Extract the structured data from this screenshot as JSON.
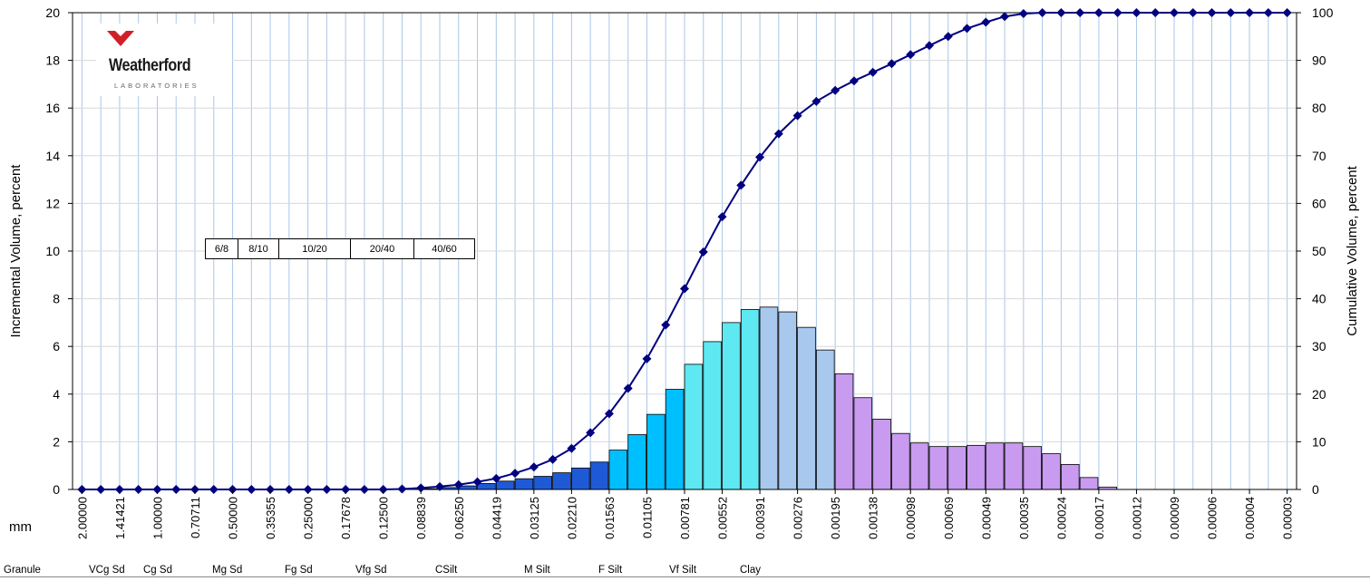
{
  "logo": {
    "wordmark": "Weatherford",
    "subtitle": "LABORATORIES"
  },
  "mesh_labels": [
    "6/8",
    "8/10",
    "10/20",
    "20/40",
    "40/60"
  ],
  "unit_label": "mm",
  "classes": [
    {
      "label": "Granule"
    },
    {
      "label": "VCg Sd"
    },
    {
      "label": "Cg Sd"
    },
    {
      "label": "Mg Sd"
    },
    {
      "label": "Fg Sd"
    },
    {
      "label": "Vfg Sd"
    },
    {
      "label": "CSilt"
    },
    {
      "label": "M Silt"
    },
    {
      "label": "F Silt"
    },
    {
      "label": "Vf Silt"
    },
    {
      "label": "Clay"
    }
  ],
  "colors": {
    "grid": "#a9c6e8",
    "line": "#000080",
    "granule_sand": "#1f5ad6",
    "coarse_silt": "#1f5ad6",
    "medium_silt": "#00bfff",
    "fine_silt": "#5ee8f2",
    "very_fine_silt": "#a8c8ee",
    "clay": "#c99bf0"
  },
  "chart_data": {
    "type": "bar",
    "xlabel": "mm",
    "ylabel": "Incremental Volume, percent",
    "y2label": "Cumulative Volume, percent",
    "ylim": [
      0,
      20
    ],
    "y2lim": [
      0,
      100
    ],
    "yticks": [
      "0",
      "2",
      "4",
      "6",
      "8",
      "10",
      "12",
      "14",
      "16",
      "18",
      "20"
    ],
    "y2ticks": [
      "0",
      "10",
      "20",
      "30",
      "40",
      "50",
      "60",
      "70",
      "80",
      "90",
      "100"
    ],
    "grid": true,
    "tick_labels": [
      "2.00000",
      "1.41421",
      "1.00000",
      "0.70711",
      "0.50000",
      "0.35355",
      "0.25000",
      "0.17678",
      "0.12500",
      "0.08839",
      "0.06250",
      "0.04419",
      "0.03125",
      "0.02210",
      "0.01563",
      "0.01105",
      "0.00781",
      "0.00552",
      "0.00391",
      "0.00276",
      "0.00195",
      "0.00138",
      "0.00098",
      "0.00069",
      "0.00049",
      "0.00035",
      "0.00024",
      "0.00017",
      "0.00012",
      "0.00009",
      "0.00006",
      "0.00004",
      "0.00003"
    ],
    "series": [
      {
        "kind": "bar",
        "values": [
          0,
          0,
          0,
          0,
          0,
          0,
          0,
          0,
          0,
          0,
          0,
          0,
          0,
          0,
          0,
          0,
          0,
          0.01,
          0.03,
          0.08,
          0.15,
          0.25,
          0.35,
          0.45,
          0.55,
          0.7,
          0.9,
          1.15,
          1.65,
          2.3,
          3.15,
          4.2,
          5.25,
          6.2,
          7.0,
          7.55,
          7.65,
          7.45,
          6.8,
          5.85,
          4.85,
          3.85,
          2.95,
          2.35,
          1.95,
          1.8,
          1.8,
          1.85,
          1.95,
          1.95,
          1.8,
          1.5,
          1.05,
          0.5,
          0.1,
          0,
          0,
          0,
          0,
          0,
          0,
          0,
          0,
          0,
          0
        ],
        "classes": [
          "granule_sand",
          "granule_sand",
          "granule_sand",
          "granule_sand",
          "granule_sand",
          "granule_sand",
          "granule_sand",
          "granule_sand",
          "granule_sand",
          "granule_sand",
          "granule_sand",
          "granule_sand",
          "granule_sand",
          "granule_sand",
          "granule_sand",
          "granule_sand",
          "granule_sand",
          "granule_sand",
          "granule_sand",
          "granule_sand",
          "coarse_silt",
          "coarse_silt",
          "coarse_silt",
          "coarse_silt",
          "coarse_silt",
          "coarse_silt",
          "coarse_silt",
          "coarse_silt",
          "medium_silt",
          "medium_silt",
          "medium_silt",
          "medium_silt",
          "fine_silt",
          "fine_silt",
          "fine_silt",
          "fine_silt",
          "very_fine_silt",
          "very_fine_silt",
          "very_fine_silt",
          "very_fine_silt",
          "clay",
          "clay",
          "clay",
          "clay",
          "clay",
          "clay",
          "clay",
          "clay",
          "clay",
          "clay",
          "clay",
          "clay",
          "clay",
          "clay",
          "clay",
          "clay",
          "clay",
          "clay",
          "clay",
          "clay",
          "clay",
          "clay",
          "clay",
          "clay",
          "clay"
        ]
      },
      {
        "kind": "line",
        "axis": "right",
        "values": [
          0,
          0,
          0,
          0,
          0,
          0,
          0,
          0,
          0,
          0,
          0,
          0,
          0,
          0,
          0,
          0,
          0,
          0.1,
          0.3,
          0.6,
          1.0,
          1.6,
          2.3,
          3.4,
          4.7,
          6.3,
          8.6,
          11.9,
          15.9,
          21.2,
          27.4,
          34.5,
          42.1,
          49.8,
          57.2,
          63.8,
          69.7,
          74.6,
          78.4,
          81.4,
          83.7,
          85.7,
          87.5,
          89.3,
          91.2,
          93.1,
          95.0,
          96.7,
          98.0,
          99.2,
          99.8,
          100,
          100,
          100,
          100,
          100,
          100,
          100,
          100,
          100,
          100,
          100,
          100,
          100,
          100
        ]
      }
    ]
  }
}
